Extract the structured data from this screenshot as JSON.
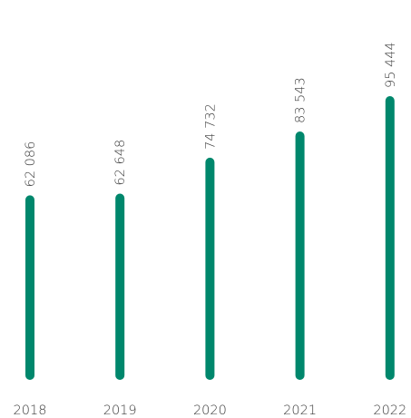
{
  "chart_data": {
    "type": "bar",
    "categories": [
      "2018",
      "2019",
      "2020",
      "2021",
      "2022"
    ],
    "values": [
      62086,
      62648,
      74732,
      83543,
      95444
    ],
    "value_labels": [
      "62 086",
      "62 648",
      "74 732",
      "83 543",
      "95 444"
    ],
    "color": "#00876c"
  }
}
